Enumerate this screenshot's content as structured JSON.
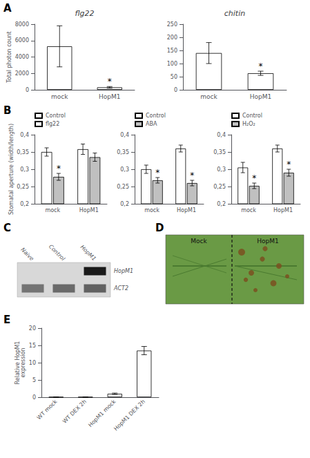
{
  "chart_data": [
    {
      "type": "bar",
      "subtitle": "A",
      "title": "flg22",
      "categories": [
        "mock",
        "HopM1"
      ],
      "values": [
        5300,
        300
      ],
      "errors": [
        2500,
        100
      ],
      "color": "#ffffff",
      "ylim": [
        0,
        8000
      ],
      "yticks": [
        0,
        2000,
        4000,
        6000,
        8000
      ],
      "ylabel": "Total photon count",
      "annotations": [
        {
          "text": "*",
          "category": "HopM1"
        }
      ],
      "grid": false
    },
    {
      "type": "bar",
      "title": "chitin",
      "categories": [
        "mock",
        "HopM1"
      ],
      "values": [
        140,
        63
      ],
      "errors": [
        40,
        8
      ],
      "color": "#ffffff",
      "ylim": [
        0,
        250
      ],
      "yticks": [
        0,
        50,
        100,
        150,
        200,
        250
      ],
      "annotations": [
        {
          "text": "*",
          "category": "HopM1"
        }
      ],
      "grid": false
    },
    {
      "type": "bar",
      "subtitle": "B",
      "categories": [
        "mock",
        "HopM1"
      ],
      "series": [
        {
          "name": "Control",
          "color": "#ffffff",
          "values": [
            0.35,
            0.358
          ],
          "errors": [
            0.012,
            0.015
          ]
        },
        {
          "name": "flg22",
          "color": "#c0c0c0",
          "values": [
            0.278,
            0.335
          ],
          "errors": [
            0.01,
            0.012
          ]
        }
      ],
      "ylim": [
        0.2,
        0.4
      ],
      "yticks": [
        {
          "value": 0.2,
          "label": "0,2"
        },
        {
          "value": 0.25,
          "label": "0,25"
        },
        {
          "value": 0.3,
          "label": "0,3"
        },
        {
          "value": 0.35,
          "label": "0,35"
        },
        {
          "value": 0.4,
          "label": "0,4"
        }
      ],
      "ylabel": "Stomatal aperture (width/length)",
      "legend": "upper left",
      "annotations": [
        {
          "text": "*",
          "series": "flg22",
          "category": "mock"
        }
      ],
      "grid": false
    },
    {
      "type": "bar",
      "categories": [
        "mock",
        "HopM1"
      ],
      "series": [
        {
          "name": "Control",
          "color": "#ffffff",
          "values": [
            0.3,
            0.36
          ],
          "errors": [
            0.012,
            0.01
          ]
        },
        {
          "name": "ABA",
          "color": "#c0c0c0",
          "values": [
            0.268,
            0.26
          ],
          "errors": [
            0.008,
            0.008
          ]
        }
      ],
      "ylim": [
        0.2,
        0.4
      ],
      "yticks": [
        {
          "value": 0.2,
          "label": "0,2"
        },
        {
          "value": 0.25,
          "label": "0,25"
        },
        {
          "value": 0.3,
          "label": "0,3"
        },
        {
          "value": 0.35,
          "label": "0,35"
        },
        {
          "value": 0.4,
          "label": "0,4"
        }
      ],
      "legend": "upper left",
      "annotations": [
        {
          "text": "*",
          "series": "ABA",
          "category": "mock"
        },
        {
          "text": "*",
          "series": "ABA",
          "category": "HopM1"
        }
      ],
      "grid": false
    },
    {
      "type": "bar",
      "categories": [
        "mock",
        "HopM1"
      ],
      "series": [
        {
          "name": "Control",
          "color": "#ffffff",
          "values": [
            0.305,
            0.36
          ],
          "errors": [
            0.015,
            0.01
          ]
        },
        {
          "name": "H₂O₂",
          "color": "#c0c0c0",
          "values": [
            0.252,
            0.29
          ],
          "errors": [
            0.008,
            0.01
          ]
        }
      ],
      "ylim": [
        0.2,
        0.4
      ],
      "yticks": [
        {
          "value": 0.2,
          "label": "0,2"
        },
        {
          "value": 0.25,
          "label": "0,25"
        },
        {
          "value": 0.3,
          "label": "0,3"
        },
        {
          "value": 0.35,
          "label": "0,35"
        },
        {
          "value": 0.4,
          "label": "0,4"
        }
      ],
      "legend": "upper left",
      "annotations": [
        {
          "text": "*",
          "series": "H₂O₂",
          "category": "mock"
        },
        {
          "text": "*",
          "series": "H₂O₂",
          "category": "HopM1"
        }
      ],
      "grid": false
    },
    {
      "type": "blot",
      "subtitle": "C",
      "categories": [
        "Naive",
        "Control",
        "HopM1"
      ],
      "series": [
        {
          "name": "HopM1",
          "color": "#1a1a1a",
          "values": [
            0,
            0,
            1.0
          ]
        },
        {
          "name": "ACT2",
          "color": "#222222",
          "values": [
            0.55,
            0.6,
            0.65
          ]
        }
      ]
    },
    {
      "type": "image",
      "subtitle": "D",
      "categories": [
        "Mock",
        "HopM1"
      ]
    },
    {
      "type": "bar",
      "subtitle": "E",
      "categories": [
        "WT mock",
        "WT DEX 2h",
        "HopM1 mock",
        "HopM1 DEX 2h"
      ],
      "values": [
        0.05,
        0.05,
        1.0,
        13.5
      ],
      "errors": [
        0.02,
        0.02,
        0.2,
        1.2
      ],
      "color": "#ffffff",
      "ylim": [
        0,
        20
      ],
      "yticks": [
        0,
        5,
        10,
        15,
        20
      ],
      "ylabel": "Relative HopM1\nexpression",
      "grid": false
    }
  ]
}
